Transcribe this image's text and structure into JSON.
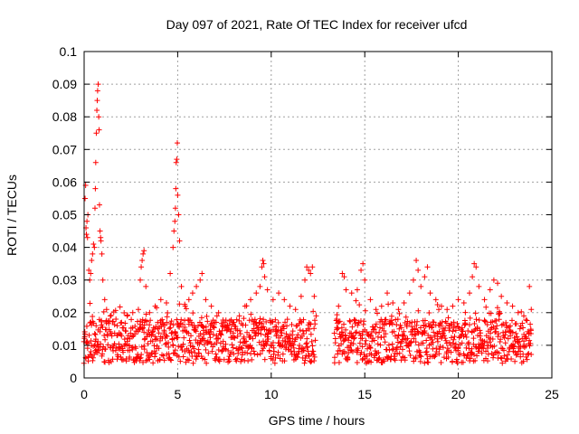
{
  "chart_data": {
    "type": "scatter",
    "title": "Day 097 of 2021, Rate Of TEC Index for receiver ufcd",
    "xlabel": "GPS time / hours",
    "ylabel": "ROTI / TECUs",
    "xlim": [
      0,
      25
    ],
    "ylim": [
      0,
      0.1
    ],
    "xticks": [
      0,
      5,
      10,
      15,
      20,
      25
    ],
    "xtick_labels": [
      "0",
      "5",
      "10",
      "15",
      "20",
      "25"
    ],
    "yticks": [
      0,
      0.01,
      0.02,
      0.03,
      0.04,
      0.05,
      0.06,
      0.07,
      0.08,
      0.09,
      0.1
    ],
    "ytick_labels": [
      "0",
      "0.01",
      "0.02",
      "0.03",
      "0.04",
      "0.05",
      "0.06",
      "0.07",
      "0.08",
      "0.09",
      "0.1"
    ],
    "grid": true,
    "marker": "+",
    "color": "#ff0000",
    "data_gap_hours": [
      12.4,
      13.4
    ],
    "series": [
      {
        "name": "ROTI",
        "points": [
          [
            0.05,
            0.055
          ],
          [
            0.08,
            0.059
          ],
          [
            0.1,
            0.046
          ],
          [
            0.12,
            0.044
          ],
          [
            0.15,
            0.048
          ],
          [
            0.18,
            0.043
          ],
          [
            0.2,
            0.05
          ],
          [
            0.25,
            0.033
          ],
          [
            0.3,
            0.03
          ],
          [
            0.35,
            0.032
          ],
          [
            0.4,
            0.036
          ],
          [
            0.45,
            0.038
          ],
          [
            0.5,
            0.041
          ],
          [
            0.55,
            0.04
          ],
          [
            0.58,
            0.052
          ],
          [
            0.6,
            0.058
          ],
          [
            0.62,
            0.066
          ],
          [
            0.65,
            0.075
          ],
          [
            0.68,
            0.082
          ],
          [
            0.7,
            0.085
          ],
          [
            0.72,
            0.088
          ],
          [
            0.75,
            0.09
          ],
          [
            0.78,
            0.08
          ],
          [
            0.8,
            0.076
          ],
          [
            0.82,
            0.053
          ],
          [
            0.85,
            0.045
          ],
          [
            0.88,
            0.043
          ],
          [
            0.9,
            0.042
          ],
          [
            0.95,
            0.038
          ],
          [
            1.0,
            0.03
          ],
          [
            1.1,
            0.024
          ],
          [
            1.2,
            0.021
          ],
          [
            1.4,
            0.019
          ],
          [
            1.7,
            0.018
          ],
          [
            2.0,
            0.017
          ],
          [
            2.3,
            0.019
          ],
          [
            2.6,
            0.02
          ],
          [
            2.9,
            0.021
          ],
          [
            3.0,
            0.03
          ],
          [
            3.05,
            0.034
          ],
          [
            3.1,
            0.036
          ],
          [
            3.15,
            0.038
          ],
          [
            3.2,
            0.039
          ],
          [
            3.3,
            0.028
          ],
          [
            3.5,
            0.02
          ],
          [
            3.8,
            0.022
          ],
          [
            4.1,
            0.024
          ],
          [
            4.4,
            0.023
          ],
          [
            4.6,
            0.032
          ],
          [
            4.75,
            0.04
          ],
          [
            4.8,
            0.045
          ],
          [
            4.85,
            0.048
          ],
          [
            4.88,
            0.052
          ],
          [
            4.9,
            0.058
          ],
          [
            4.92,
            0.066
          ],
          [
            4.95,
            0.067
          ],
          [
            4.98,
            0.072
          ],
          [
            5.0,
            0.056
          ],
          [
            5.05,
            0.05
          ],
          [
            5.1,
            0.042
          ],
          [
            5.2,
            0.028
          ],
          [
            5.4,
            0.022
          ],
          [
            5.6,
            0.024
          ],
          [
            5.8,
            0.026
          ],
          [
            6.0,
            0.028
          ],
          [
            6.2,
            0.03
          ],
          [
            6.3,
            0.032
          ],
          [
            6.5,
            0.024
          ],
          [
            6.8,
            0.022
          ],
          [
            7.1,
            0.019
          ],
          [
            7.4,
            0.016
          ],
          [
            7.7,
            0.015
          ],
          [
            8.0,
            0.017
          ],
          [
            8.3,
            0.019
          ],
          [
            8.6,
            0.022
          ],
          [
            8.9,
            0.024
          ],
          [
            9.2,
            0.026
          ],
          [
            9.4,
            0.028
          ],
          [
            9.5,
            0.034
          ],
          [
            9.55,
            0.036
          ],
          [
            9.6,
            0.035
          ],
          [
            9.65,
            0.031
          ],
          [
            9.8,
            0.027
          ],
          [
            10.1,
            0.024
          ],
          [
            10.4,
            0.026
          ],
          [
            10.7,
            0.024
          ],
          [
            11.0,
            0.022
          ],
          [
            11.3,
            0.021
          ],
          [
            11.6,
            0.025
          ],
          [
            11.8,
            0.03
          ],
          [
            11.9,
            0.034
          ],
          [
            12.0,
            0.033
          ],
          [
            12.1,
            0.032
          ],
          [
            12.2,
            0.034
          ],
          [
            12.3,
            0.025
          ],
          [
            12.4,
            0.019
          ],
          [
            13.5,
            0.018
          ],
          [
            13.6,
            0.022
          ],
          [
            13.8,
            0.032
          ],
          [
            13.9,
            0.031
          ],
          [
            14.0,
            0.027
          ],
          [
            14.3,
            0.026
          ],
          [
            14.6,
            0.027
          ],
          [
            14.8,
            0.033
          ],
          [
            14.9,
            0.035
          ],
          [
            15.0,
            0.03
          ],
          [
            15.3,
            0.024
          ],
          [
            15.6,
            0.021
          ],
          [
            15.9,
            0.022
          ],
          [
            16.2,
            0.026
          ],
          [
            16.5,
            0.023
          ],
          [
            16.8,
            0.021
          ],
          [
            17.1,
            0.023
          ],
          [
            17.4,
            0.026
          ],
          [
            17.6,
            0.03
          ],
          [
            17.75,
            0.036
          ],
          [
            17.85,
            0.033
          ],
          [
            18.0,
            0.028
          ],
          [
            18.2,
            0.031
          ],
          [
            18.35,
            0.034
          ],
          [
            18.5,
            0.026
          ],
          [
            18.8,
            0.024
          ],
          [
            19.1,
            0.022
          ],
          [
            19.4,
            0.021
          ],
          [
            19.7,
            0.022
          ],
          [
            20.0,
            0.024
          ],
          [
            20.3,
            0.023
          ],
          [
            20.6,
            0.026
          ],
          [
            20.75,
            0.031
          ],
          [
            20.85,
            0.035
          ],
          [
            20.95,
            0.034
          ],
          [
            21.1,
            0.028
          ],
          [
            21.4,
            0.024
          ],
          [
            21.7,
            0.027
          ],
          [
            21.9,
            0.03
          ],
          [
            22.1,
            0.029
          ],
          [
            22.3,
            0.025
          ],
          [
            22.6,
            0.023
          ],
          [
            22.9,
            0.022
          ],
          [
            23.2,
            0.02
          ],
          [
            23.5,
            0.019
          ],
          [
            23.8,
            0.028
          ],
          [
            23.9,
            0.021
          ]
        ]
      }
    ]
  }
}
